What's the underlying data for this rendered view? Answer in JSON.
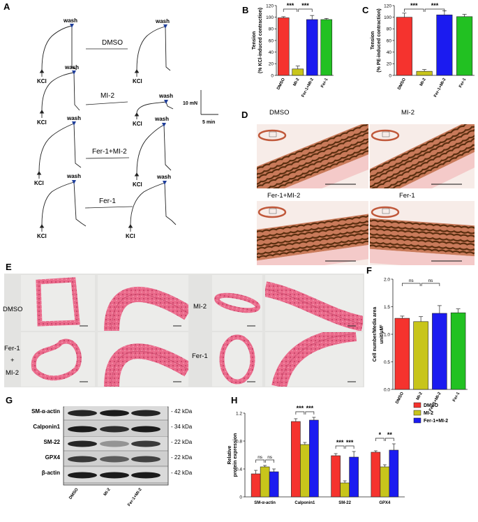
{
  "panel_letters": [
    "A",
    "B",
    "C",
    "D",
    "E",
    "F",
    "G",
    "H"
  ],
  "colors": {
    "red": "#f5332e",
    "olive": "#c8c51b",
    "blue": "#1b1bf0",
    "green": "#22c122",
    "tissue": "#e9577d",
    "elastin": "#5b2f10"
  },
  "panel_a": {
    "conditions": [
      "DMSO",
      "MI-2",
      "Fer-1+MI-2",
      "Fer-1"
    ],
    "kcl": "KCl",
    "wash": "wash",
    "scale_mn": "10 mN",
    "scale_min": "5 min"
  },
  "panel_d": {
    "labels": [
      "DMSO",
      "MI-2",
      "Fer-1+MI-2",
      "Fer-1"
    ]
  },
  "panel_e": {
    "labels": [
      "DMSO",
      "MI-2",
      "Fer-1",
      "+",
      "MI-2",
      "Fer-1"
    ]
  },
  "panel_g": {
    "proteins": [
      "SM-α-actin",
      "Calponin1",
      "SM-22",
      "GPX4",
      "β-actin"
    ],
    "sizes": [
      "- 42 kDa",
      "- 34 kDa",
      "- 22 kDa",
      "- 22 kDa",
      "- 42 kDa"
    ],
    "lanes": [
      "DMSO",
      "MI-2",
      "Fer-1+MI-2"
    ]
  },
  "chart_data": [
    {
      "panel": "B",
      "type": "bar",
      "categories": [
        "DMSO",
        "MI-2",
        "Fer-1+MI-2",
        "Fer-1"
      ],
      "values": [
        99,
        11,
        96,
        96
      ],
      "errors": [
        2,
        5,
        7,
        2
      ],
      "ylabel_line1": "Tension",
      "ylabel_line2": "(% KCl-induced contraction)",
      "ylim": [
        0,
        120
      ],
      "yticks": [
        "0",
        "20",
        "40",
        "60",
        "80",
        "100",
        "120"
      ],
      "significance": [
        "***",
        "***"
      ]
    },
    {
      "panel": "C",
      "type": "bar",
      "categories": [
        "DMSO",
        "MI-2",
        "Fer-1+MI-2",
        "Fer-1"
      ],
      "values": [
        100,
        7,
        104,
        101
      ],
      "errors": [
        7,
        3,
        7,
        4
      ],
      "ylabel_line1": "Tension",
      "ylabel_line2": "(% PE-induced contraction)",
      "ylim": [
        0,
        120
      ],
      "yticks": [
        "0",
        "20",
        "40",
        "60",
        "80",
        "100",
        "120"
      ],
      "significance": [
        "***",
        "***"
      ]
    },
    {
      "panel": "F",
      "type": "bar",
      "categories": [
        "DMSO",
        "MI-2",
        "Fer-1+MI-2",
        "Fer-1"
      ],
      "values": [
        1.29,
        1.23,
        1.38,
        1.39
      ],
      "errors": [
        0.04,
        0.09,
        0.14,
        0.07
      ],
      "ylabel_line1": "Cell number/Media area",
      "ylabel_line2": "unit/μM²",
      "ylim": [
        0,
        2.0
      ],
      "yticks": [
        "0.0",
        "0.5",
        "1.0",
        "1.5",
        "2.0"
      ],
      "significance": [
        "ns",
        "ns"
      ]
    },
    {
      "panel": "H",
      "type": "bar",
      "categories": [
        "SM-α-actin",
        "Calponin1",
        "SM-22",
        "GPX4"
      ],
      "series": [
        {
          "name": "DMSO",
          "values": [
            0.33,
            1.08,
            0.59,
            0.64
          ],
          "errors": [
            0.05,
            0.04,
            0.03,
            0.02
          ]
        },
        {
          "name": "MI-2",
          "values": [
            0.43,
            0.75,
            0.2,
            0.43
          ],
          "errors": [
            0.02,
            0.03,
            0.03,
            0.03
          ]
        },
        {
          "name": "Fer-1+MI-2",
          "values": [
            0.36,
            1.1,
            0.57,
            0.67
          ],
          "errors": [
            0.04,
            0.04,
            0.08,
            0.09
          ]
        }
      ],
      "ylabel_line1": "Relative",
      "ylabel_line2": "protein expression",
      "ylim": [
        0,
        1.2
      ],
      "yticks": [
        "0",
        "0.4",
        "0.8",
        "1.2"
      ],
      "significance": [
        [
          "ns",
          "ns"
        ],
        [
          "***",
          "***"
        ],
        [
          "***",
          "***"
        ],
        [
          "*",
          "**"
        ]
      ]
    }
  ]
}
